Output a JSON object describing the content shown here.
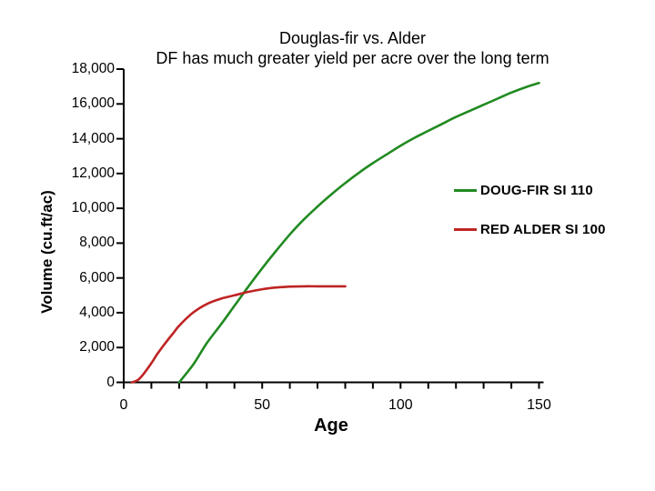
{
  "chart_data": {
    "type": "line",
    "title": "Douglas-fir vs. Alder",
    "subtitle": "DF has much greater yield per acre over the long term",
    "xlabel": "Age",
    "ylabel": "Volume (cu.ft/ac)",
    "xlim": [
      0,
      150
    ],
    "ylim": [
      0,
      18000
    ],
    "grid": false,
    "legend_position": "right-middle",
    "x_ticks": [
      {
        "value": 0,
        "label": "0"
      },
      {
        "value": 50,
        "label": "50"
      },
      {
        "value": 100,
        "label": "100"
      },
      {
        "value": 150,
        "label": "150"
      }
    ],
    "x_minor_tick_step": 10,
    "y_ticks": [
      {
        "value": 0,
        "label": "0"
      },
      {
        "value": 2000,
        "label": "2,000"
      },
      {
        "value": 4000,
        "label": "4,000"
      },
      {
        "value": 6000,
        "label": "6,000"
      },
      {
        "value": 8000,
        "label": "8,000"
      },
      {
        "value": 10000,
        "label": "10,000"
      },
      {
        "value": 12000,
        "label": "12,000"
      },
      {
        "value": 14000,
        "label": "14,000"
      },
      {
        "value": 16000,
        "label": "16,000"
      },
      {
        "value": 18000,
        "label": "18,000"
      }
    ],
    "series": [
      {
        "name": "DOUG-FIR SI 110",
        "color": "#218a21",
        "points": [
          [
            20,
            0
          ],
          [
            25,
            1000
          ],
          [
            30,
            2250
          ],
          [
            35,
            3300
          ],
          [
            40,
            4400
          ],
          [
            45,
            5500
          ],
          [
            50,
            6550
          ],
          [
            55,
            7550
          ],
          [
            60,
            8500
          ],
          [
            65,
            9350
          ],
          [
            70,
            10100
          ],
          [
            75,
            10800
          ],
          [
            80,
            11450
          ],
          [
            85,
            12050
          ],
          [
            90,
            12600
          ],
          [
            95,
            13100
          ],
          [
            100,
            13600
          ],
          [
            105,
            14050
          ],
          [
            110,
            14450
          ],
          [
            115,
            14850
          ],
          [
            120,
            15250
          ],
          [
            125,
            15600
          ],
          [
            130,
            15950
          ],
          [
            135,
            16300
          ],
          [
            140,
            16650
          ],
          [
            145,
            16950
          ],
          [
            150,
            17200
          ]
        ]
      },
      {
        "name": "RED ALDER SI 100",
        "color": "#bf2424",
        "points": [
          [
            3,
            0
          ],
          [
            5,
            120
          ],
          [
            7,
            450
          ],
          [
            10,
            1100
          ],
          [
            12,
            1600
          ],
          [
            15,
            2250
          ],
          [
            18,
            2850
          ],
          [
            20,
            3250
          ],
          [
            25,
            4000
          ],
          [
            30,
            4500
          ],
          [
            35,
            4800
          ],
          [
            40,
            5000
          ],
          [
            45,
            5200
          ],
          [
            50,
            5350
          ],
          [
            55,
            5450
          ],
          [
            60,
            5500
          ],
          [
            65,
            5520
          ],
          [
            70,
            5520
          ],
          [
            75,
            5520
          ],
          [
            80,
            5520
          ]
        ]
      }
    ]
  },
  "colors": {
    "axis": "#000000",
    "background": "#ffffff"
  }
}
